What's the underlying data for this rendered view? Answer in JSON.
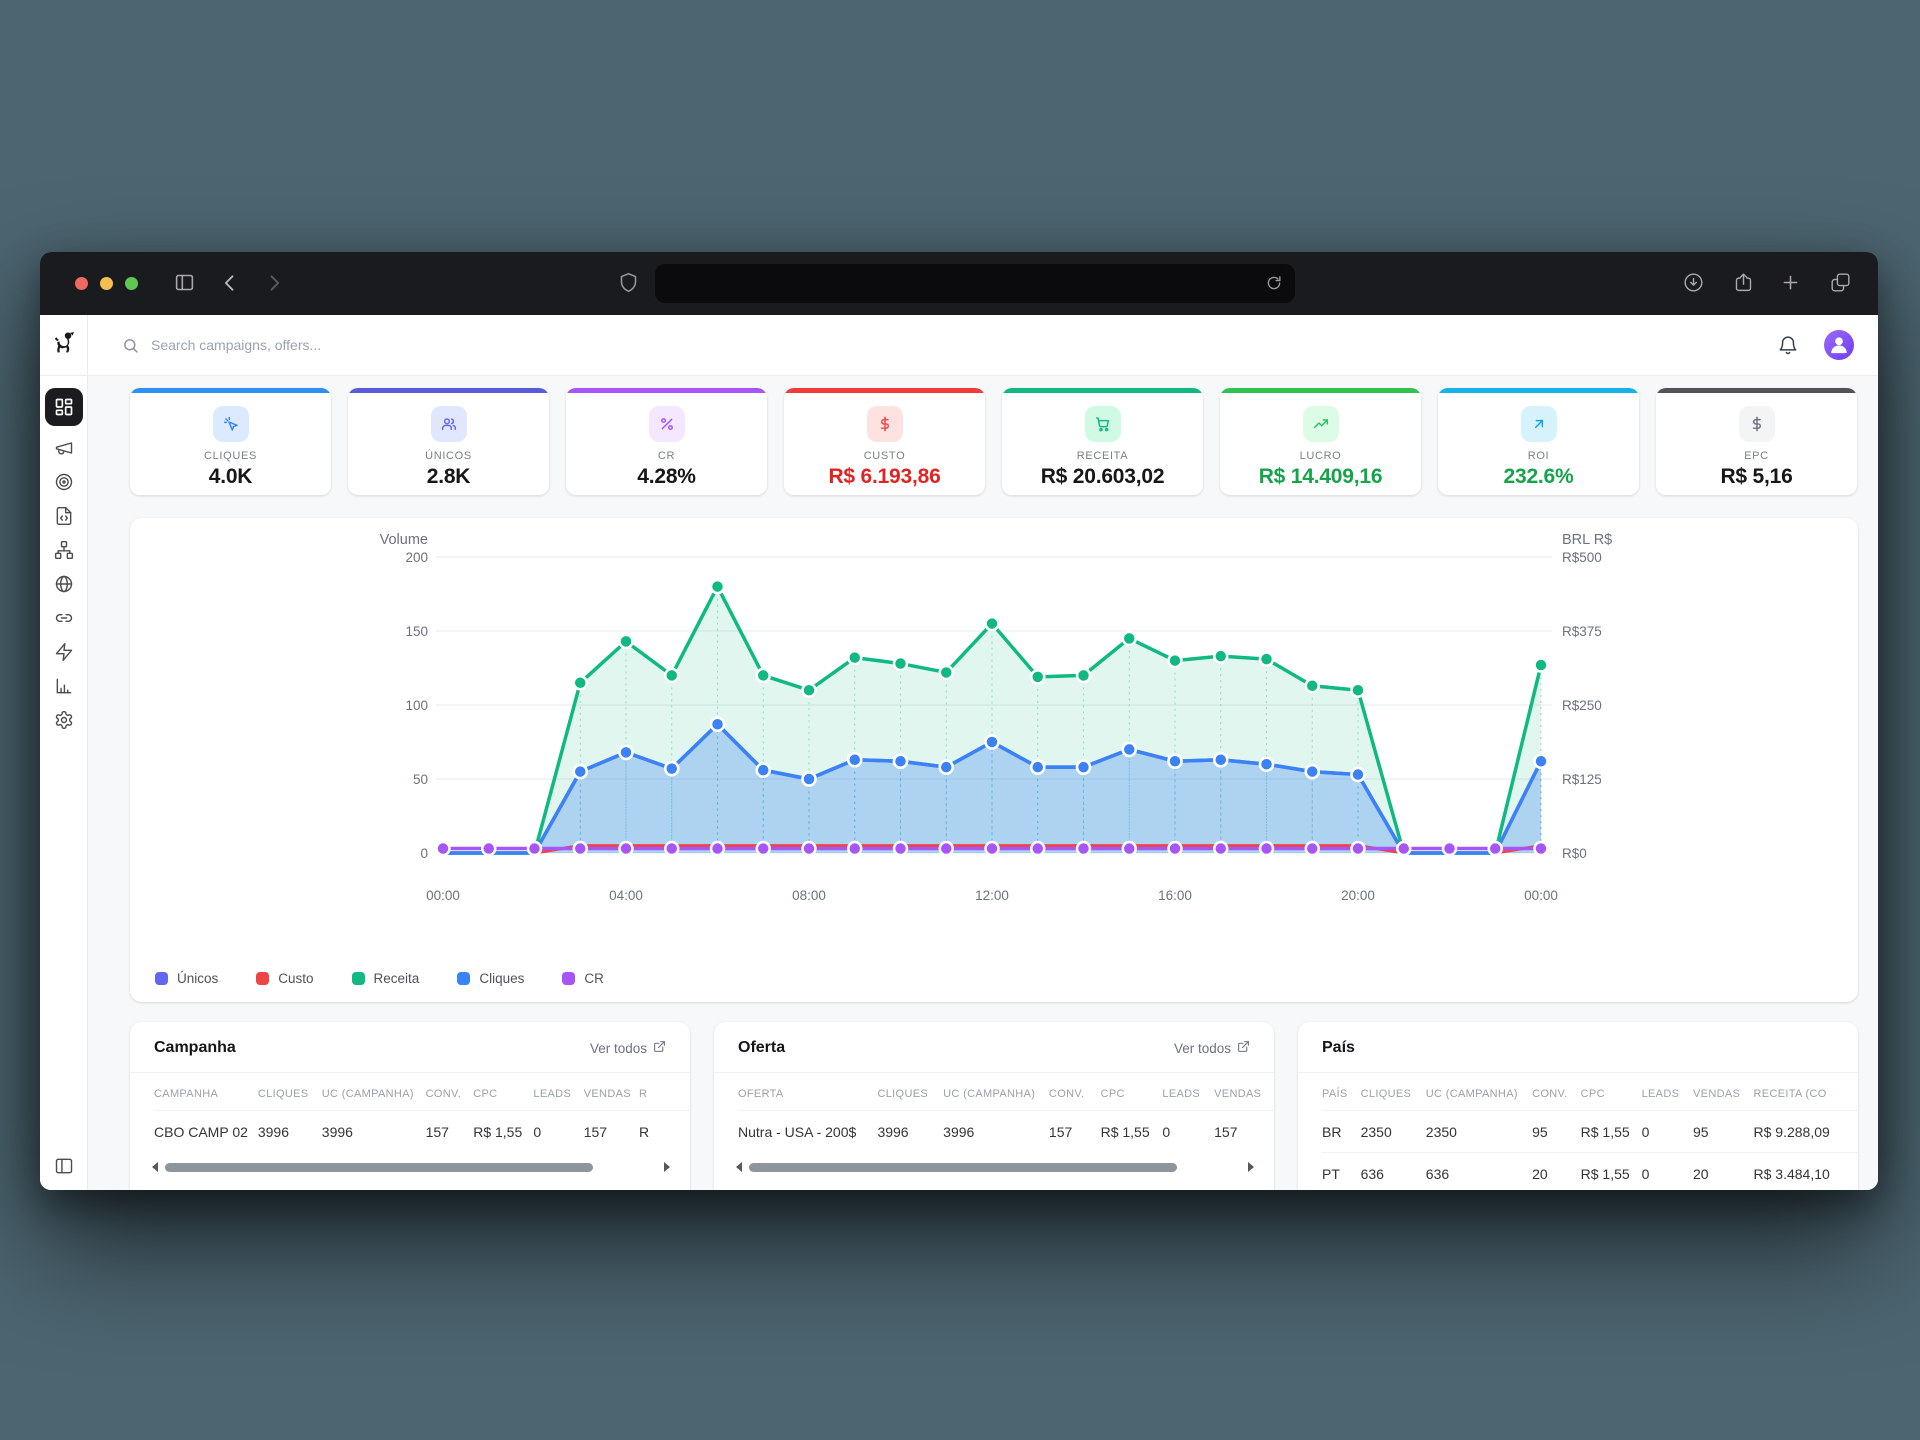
{
  "browser": {
    "traffic_lights": [
      "#ee6a5f",
      "#f5bf4f",
      "#61c554"
    ],
    "toolbar_icons": [
      "sidebar-toggle",
      "back",
      "forward",
      "shield",
      "reload",
      "download",
      "share",
      "new-tab",
      "tab-overview"
    ],
    "url_value": ""
  },
  "sidebar": {
    "logo": "dog-logo",
    "items": [
      {
        "id": "dashboard",
        "icon": "layout-dashboard",
        "active": true
      },
      {
        "id": "campaigns",
        "icon": "megaphone",
        "active": false
      },
      {
        "id": "tracking",
        "icon": "target",
        "active": false
      },
      {
        "id": "scripts",
        "icon": "file-code",
        "active": false
      },
      {
        "id": "structure",
        "icon": "sitemap",
        "active": false
      },
      {
        "id": "domains",
        "icon": "globe",
        "active": false
      },
      {
        "id": "links",
        "icon": "link",
        "active": false
      },
      {
        "id": "automations",
        "icon": "zap",
        "active": false
      },
      {
        "id": "reports",
        "icon": "bar-chart",
        "active": false
      },
      {
        "id": "settings",
        "icon": "settings",
        "active": false
      }
    ],
    "bottom_icon": "panel-left"
  },
  "topbar": {
    "search_placeholder": "Search campaigns, offers...",
    "icons": [
      "bell",
      "avatar"
    ]
  },
  "stat_cards": [
    {
      "label": "CLIQUES",
      "value": "4.0K",
      "accent": "#2e8ff2",
      "icon": "cursor-click",
      "icon_color": "#3b82f6",
      "icon_bg": "#dbeafe",
      "value_color": "#17171b"
    },
    {
      "label": "ÚNICOS",
      "value": "2.8K",
      "accent": "#5a5bd8",
      "icon": "users",
      "icon_color": "#6366f1",
      "icon_bg": "#e0e7ff",
      "value_color": "#17171b"
    },
    {
      "label": "CR",
      "value": "4.28%",
      "accent": "#a855f7",
      "icon": "percent",
      "icon_color": "#a855f7",
      "icon_bg": "#f3e8ff",
      "value_color": "#17171b"
    },
    {
      "label": "CUSTO",
      "value": "R$ 6.193,86",
      "accent": "#ef3b3b",
      "icon": "dollar",
      "icon_color": "#ef4444",
      "icon_bg": "#fee2e2",
      "value_color": "#e02424"
    },
    {
      "label": "RECEITA",
      "value": "R$ 20.603,02",
      "accent": "#10b981",
      "icon": "cart",
      "icon_color": "#10b981",
      "icon_bg": "#d1fae5",
      "value_color": "#17171b"
    },
    {
      "label": "LUCRO",
      "value": "R$ 14.409,16",
      "accent": "#2ec24f",
      "icon": "trend-up",
      "icon_color": "#22c55e",
      "icon_bg": "#dcfce7",
      "value_color": "#16a34a"
    },
    {
      "label": "ROI",
      "value": "232.6%",
      "accent": "#17b3e8",
      "icon": "arrow-up-right",
      "icon_color": "#0ea5e9",
      "icon_bg": "#d6f3fd",
      "value_color": "#16a34a"
    },
    {
      "label": "EPC",
      "value": "R$ 5,16",
      "accent": "#52525b",
      "icon": "dollar",
      "icon_color": "#6b7280",
      "icon_bg": "#f3f4f6",
      "value_color": "#17171b"
    }
  ],
  "chart_data": {
    "type": "area",
    "x_tick_labels": [
      "00:00",
      "04:00",
      "08:00",
      "12:00",
      "16:00",
      "20:00",
      "00:00"
    ],
    "points_interval_minutes": 60,
    "left_axis": {
      "title": "Volume",
      "range": [
        0,
        200
      ],
      "ticks": [
        0,
        50,
        100,
        150,
        200
      ]
    },
    "right_axis": {
      "title": "BRL R$",
      "tick_labels": [
        "R$0",
        "R$125",
        "R$250",
        "R$375",
        "R$500"
      ]
    },
    "grid": true,
    "legend_position": "bottom-left",
    "series": [
      {
        "name": "Únicos",
        "color": "#6366f1",
        "fill": false,
        "dots": true,
        "values": [
          0,
          0,
          0,
          55,
          68,
          57,
          87,
          56,
          50,
          63,
          62,
          58,
          75,
          58,
          58,
          70,
          62,
          63,
          60,
          55,
          53,
          0,
          0,
          0,
          62
        ]
      },
      {
        "name": "Custo",
        "color": "#ef4444",
        "fill": false,
        "dots": false,
        "values": [
          0,
          0,
          0,
          5,
          5,
          5,
          5,
          5,
          5,
          5,
          5,
          5,
          5,
          5,
          5,
          5,
          5,
          5,
          5,
          5,
          5,
          0,
          0,
          0,
          5
        ]
      },
      {
        "name": "Receita",
        "color": "#10b981",
        "fill": true,
        "fill_opacity": 0.13,
        "dots": true,
        "values": [
          0,
          0,
          0,
          115,
          143,
          120,
          180,
          120,
          110,
          132,
          128,
          122,
          155,
          119,
          120,
          145,
          130,
          133,
          131,
          113,
          110,
          0,
          0,
          0,
          127
        ]
      },
      {
        "name": "Cliques",
        "color": "#3b82f6",
        "fill": true,
        "fill_opacity": 0.3,
        "dots": true,
        "values": [
          0,
          0,
          0,
          55,
          68,
          57,
          87,
          56,
          50,
          63,
          62,
          58,
          75,
          58,
          58,
          70,
          62,
          63,
          60,
          55,
          53,
          0,
          0,
          0,
          62
        ]
      },
      {
        "name": "CR",
        "color": "#a855f7",
        "fill": false,
        "dots": true,
        "values": [
          3,
          3,
          3,
          3,
          3,
          3,
          3,
          3,
          3,
          3,
          3,
          3,
          3,
          3,
          3,
          3,
          3,
          3,
          3,
          3,
          3,
          3,
          3,
          3,
          3
        ]
      }
    ]
  },
  "tables": [
    {
      "title": "Campanha",
      "link": "Ver todos",
      "scrollbar": true,
      "columns": [
        "CAMPANHA",
        "CLIQUES",
        "UC (CAMPANHA)",
        "CONV.",
        "CPC",
        "LEADS",
        "VENDAS",
        "R"
      ],
      "rows": [
        [
          "CBO CAMP 02",
          "3996",
          "3996",
          "157",
          "R$ 1,55",
          "0",
          "157",
          "R"
        ]
      ]
    },
    {
      "title": "Oferta",
      "link": "Ver todos",
      "scrollbar": true,
      "columns": [
        "OFERTA",
        "CLIQUES",
        "UC (CAMPANHA)",
        "CONV.",
        "CPC",
        "LEADS",
        "VENDAS"
      ],
      "rows": [
        [
          "Nutra - USA - 200$",
          "3996",
          "3996",
          "157",
          "R$ 1,55",
          "0",
          "157"
        ]
      ]
    },
    {
      "title": "País",
      "link": "",
      "scrollbar": false,
      "columns": [
        "PAÍS",
        "CLIQUES",
        "UC (CAMPANHA)",
        "CONV.",
        "CPC",
        "LEADS",
        "VENDAS",
        "RECEITA (CO"
      ],
      "rows": [
        [
          "BR",
          "2350",
          "2350",
          "95",
          "R$ 1,55",
          "0",
          "95",
          "R$ 9.288,09"
        ],
        [
          "PT",
          "636",
          "636",
          "20",
          "R$ 1,55",
          "0",
          "20",
          "R$ 3.484,10"
        ]
      ]
    }
  ]
}
